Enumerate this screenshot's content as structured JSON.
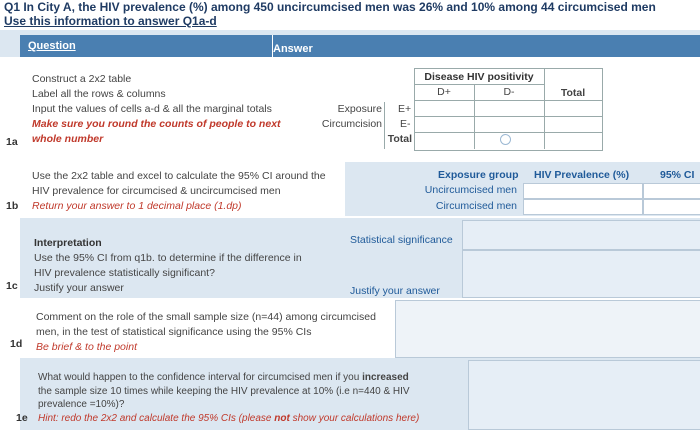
{
  "header": {
    "line1": "Q1 In City A, the HIV prevalence (%) among 450 uncircumcised men was 26% and 10% among 44 circumcised men",
    "line2": "Use this information to answer Q1a-d"
  },
  "columns": {
    "question": "Question",
    "answer": "Answer"
  },
  "q1a": {
    "label": "1a",
    "line1": "Construct a 2x2 table",
    "line2": "Label all the rows & columns",
    "line3": "Input the values of cells a-d & all the marginal totals",
    "warn1": "Make sure you round the counts of people to next",
    "warn2": "whole number",
    "table": {
      "disease_header": "Disease HIV positivity",
      "d_plus": "D+",
      "d_minus": "D-",
      "total": "Total",
      "exposure": "Exposure",
      "circumcision": "Circumcision",
      "e_plus": "E+",
      "e_minus": "E-",
      "row_total": "Total"
    }
  },
  "q1b": {
    "label": "1b",
    "line1": "Use the 2x2 table and excel to calculate the 95% CI around the",
    "line2": "HIV prevalence for circumcised & uncircumcised men",
    "note": "Return your answer to 1 decimal place (1.dp)",
    "col_exposure": "Exposure group",
    "col_prevalence": "HIV Prevalence (%)",
    "col_ci": "95% CI",
    "row1": "Uncircumcised men",
    "row2": "Circumcised men"
  },
  "q1c": {
    "label": "1c",
    "title": "Interpretation",
    "line1": "Use the 95% CI from q1b. to determine if the difference in",
    "line2": "HIV prevalence statistically significant?",
    "line3": "Justify your answer",
    "ans1": "Statistical significance",
    "ans2": "Justify your answer"
  },
  "q1d": {
    "label": "1d",
    "line1": "Comment on the role of the small sample size (n=44) among circumcised",
    "line2": "men, in the test of statistical significance using the 95% CIs",
    "note": "Be brief & to the point"
  },
  "q1e": {
    "label": "1e",
    "line1a": "What would happen to the confidence interval for circumcised men if you ",
    "line1b": "increased",
    "line2": "the sample size 10 times while keeping the HIV prevalence at 10% (i.e n=440 & HIV",
    "line3": "prevalence =10%)?",
    "hint_a": "Hint: redo the 2x2 and calculate the 95% CIs (please ",
    "hint_b": "not",
    "hint_c": " show your calculations here)"
  }
}
